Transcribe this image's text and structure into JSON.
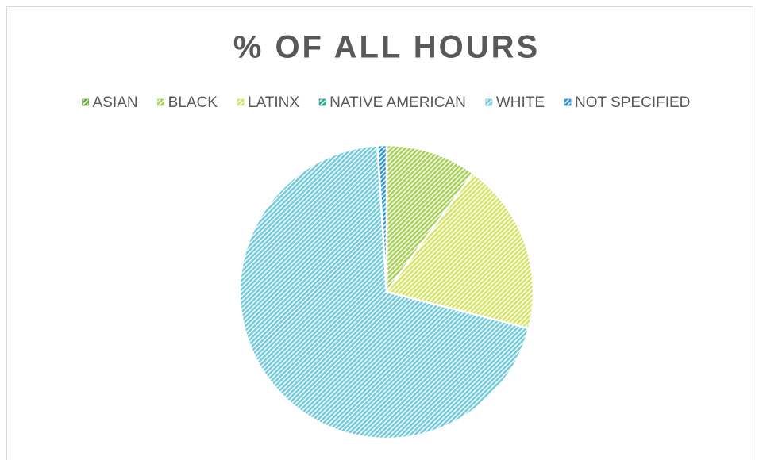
{
  "chart_data": {
    "type": "pie",
    "title": "% OF ALL HOURS",
    "categories": [
      "ASIAN",
      "BLACK",
      "LATINX",
      "NATIVE AMERICAN",
      "WHITE",
      "NOT SPECIFIED"
    ],
    "values": [
      0,
      10,
      19,
      0,
      70,
      1
    ],
    "colors": [
      "#70ad47",
      "#a9d05a",
      "#d6e46a",
      "#2ba89a",
      "#76cbdb",
      "#2e98cf"
    ],
    "legend": "top"
  }
}
